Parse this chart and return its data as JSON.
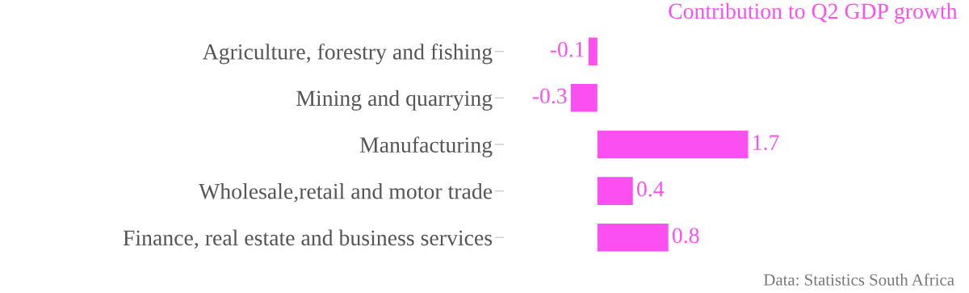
{
  "chart_data": {
    "type": "bar",
    "orientation": "horizontal",
    "categories": [
      "Agriculture, forestry and fishing",
      "Mining and quarrying",
      "Manufacturing",
      "Wholesale,retail and motor trade",
      "Finance, real estate and business services"
    ],
    "series": [
      {
        "name": "Contribution to Q2 GDP growth",
        "color": "#fc4ff2",
        "values": [
          -0.1,
          -0.3,
          1.7,
          0.4,
          0.8
        ]
      }
    ],
    "data_labels": true,
    "grid": false,
    "legend": "top right",
    "annotations": [
      "Data: Statistics South Africa"
    ]
  }
}
